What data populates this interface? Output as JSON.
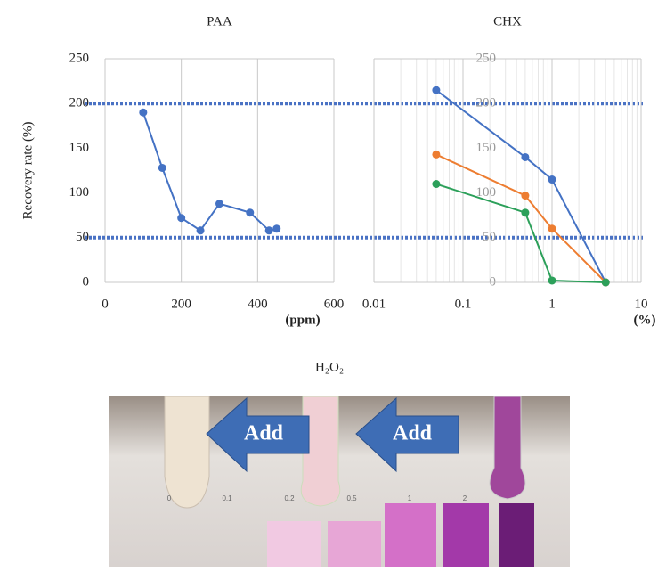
{
  "chart_data": [
    {
      "type": "line",
      "title": "PAA",
      "y_label": "Recovery rate (%)",
      "x_label": "(ppm)",
      "xlim": [
        0,
        600
      ],
      "xticks": [
        0,
        200,
        400,
        600
      ],
      "ylim": [
        0,
        250
      ],
      "yticks": [
        0,
        50,
        100,
        150,
        200,
        250
      ],
      "grid": true,
      "reference_lines": {
        "values": [
          200,
          50
        ],
        "color": "#4a72c4"
      },
      "series": [
        {
          "color": "#4472c4",
          "x": [
            100,
            150,
            200,
            250,
            300,
            380,
            430,
            450
          ],
          "values": [
            190,
            128,
            72,
            58,
            88,
            78,
            58,
            60
          ]
        }
      ]
    },
    {
      "type": "line",
      "title": "CHX",
      "x_label": "(%)",
      "log_x": true,
      "xlim": [
        0.01,
        10
      ],
      "xticks": [
        0.01,
        0.1,
        1,
        10
      ],
      "ylim": [
        0,
        250
      ],
      "yticks": [
        0,
        50,
        100,
        150,
        200,
        250
      ],
      "grid": true,
      "series": [
        {
          "color": "#4472c4",
          "x": [
            0.05,
            0.5,
            1,
            4
          ],
          "values": [
            215,
            140,
            115,
            0
          ]
        },
        {
          "color": "#ed7d31",
          "x": [
            0.05,
            0.5,
            1,
            4
          ],
          "values": [
            143,
            97,
            60,
            0
          ]
        },
        {
          "color": "#2ca05a",
          "x": [
            0.05,
            0.5,
            1,
            4
          ],
          "values": [
            110,
            78,
            2,
            0
          ]
        }
      ]
    }
  ],
  "photo": {
    "title": "H₂O₂",
    "arrow_labels": [
      "Add",
      "Add"
    ],
    "scale_labels": [
      "0",
      "0.1",
      "0.2",
      "0.5",
      "1",
      "2"
    ]
  }
}
